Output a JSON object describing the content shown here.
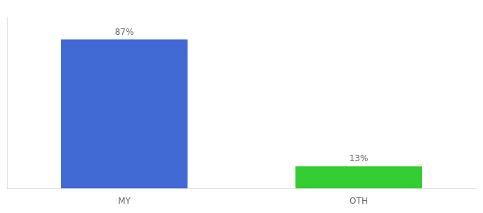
{
  "chart_data": {
    "type": "bar",
    "categories": [
      "MY",
      "OTH"
    ],
    "values": [
      87,
      13
    ],
    "value_labels": [
      "87%",
      "13%"
    ],
    "colors": [
      "#4169d4",
      "#33cc33"
    ],
    "ylim": [
      0,
      100
    ],
    "grid": false,
    "data_labels": true,
    "tick_labels": "x"
  }
}
